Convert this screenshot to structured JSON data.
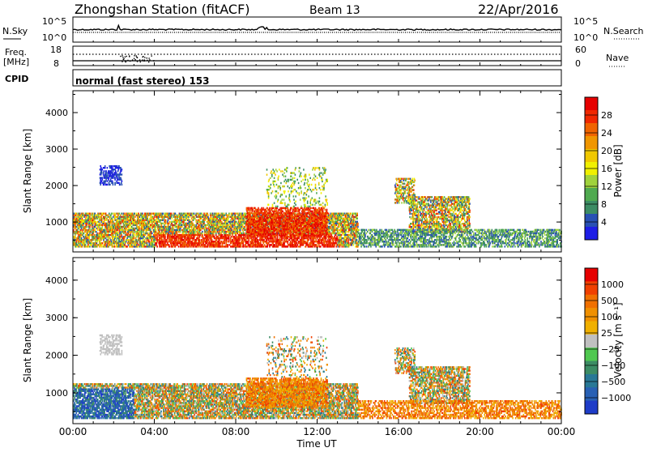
{
  "header": {
    "title": "Zhongshan Station (fitACF)",
    "beam": "Beam 13",
    "date": "22/Apr/2016"
  },
  "strips": {
    "nsky_label": "N.Sky",
    "nsky_ticks": [
      "10^5",
      "10^0"
    ],
    "nsearch_label": "N.Search",
    "nsearch_ticks": [
      "10^5",
      "10^0"
    ],
    "freq_label": "Freq.",
    "freq_unit": "[MHz]",
    "freq_ticks": [
      "18",
      "8"
    ],
    "nave_label": "Nave",
    "nave_ticks": [
      "60",
      "0"
    ],
    "cpid_label": "CPID",
    "cpid_text": "normal (fast stereo) 153"
  },
  "colors": {
    "power_scale": [
      "#1e1ee6",
      "#2850b4",
      "#3c8c64",
      "#50aa50",
      "#a0d23c",
      "#f0f000",
      "#f0c800",
      "#f09600",
      "#f06400",
      "#f02800",
      "#e60000"
    ],
    "velocity_scale": [
      "#1e3cc8",
      "#2860b4",
      "#287896",
      "#3c8c64",
      "#50c850",
      "#c0c0c0",
      "#f0b000",
      "#f09000",
      "#f07000",
      "#f04000",
      "#e60000"
    ]
  },
  "chart_data": [
    {
      "type": "heatmap",
      "name": "power",
      "ylabel": "Slant Range [km]",
      "y_ticks": [
        "1000",
        "2000",
        "3000",
        "4000"
      ],
      "x_ticks": [
        "00:00",
        "04:00",
        "08:00",
        "12:00",
        "16:00",
        "20:00",
        "00:00"
      ],
      "colorbar_label": "Power [dB]",
      "colorbar_ticks": [
        "4",
        "8",
        "12",
        "16",
        "20",
        "24",
        "28"
      ],
      "ylim": [
        180,
        4600
      ],
      "xlim": [
        0,
        24
      ]
    },
    {
      "type": "heatmap",
      "name": "velocity",
      "ylabel": "Slant Range [km]",
      "y_ticks": [
        "1000",
        "2000",
        "3000",
        "4000"
      ],
      "x_ticks": [
        "00:00",
        "04:00",
        "08:00",
        "12:00",
        "16:00",
        "20:00",
        "00:00"
      ],
      "xlabel": "Time UT",
      "colorbar_label": "Velocity [m s⁻¹]",
      "colorbar_ticks": [
        "1000",
        "500",
        "100",
        "25",
        "−25",
        "−100",
        "−500",
        "−1000"
      ],
      "ylim": [
        180,
        4600
      ],
      "xlim": [
        0,
        24
      ]
    }
  ]
}
